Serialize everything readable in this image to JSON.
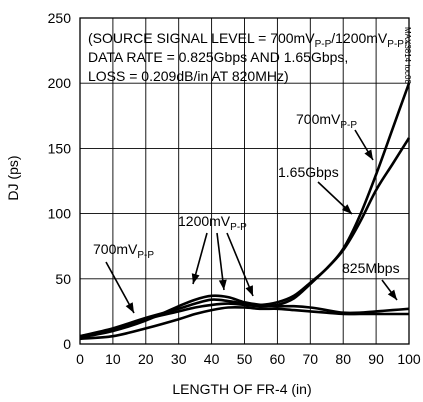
{
  "chart_data": {
    "type": "line",
    "xlabel": "LENGTH OF FR-4 (in)",
    "ylabel": "DJ (ps)",
    "xlim": [
      0,
      100
    ],
    "ylim": [
      0,
      250
    ],
    "xticks": [
      "0",
      "10",
      "20",
      "30",
      "40",
      "50",
      "60",
      "70",
      "80",
      "90",
      "100"
    ],
    "yticks": [
      "0",
      "50",
      "100",
      "150",
      "200",
      "250"
    ],
    "grid": true,
    "conditions": [
      "(SOURCE SIGNAL LEVEL = 700mV",
      "/1200mV",
      ",",
      "DATA RATE = 0.825Gbps AND 1.65Gbps,",
      "LOSS = 0.209dB/in AT 820MHz)"
    ],
    "condition_subscripts": [
      "P-P",
      "P-P"
    ],
    "chart_code": "MAX3814 toc08",
    "series": [
      {
        "x": [
          0,
          10,
          20,
          30,
          35,
          40,
          45,
          50,
          55,
          60,
          65,
          70,
          75,
          80,
          85,
          90,
          95,
          100
        ],
        "values": [
          6,
          12,
          20,
          27,
          31,
          34,
          33,
          31,
          30,
          32,
          37,
          47,
          58,
          73,
          98,
          130,
          165,
          200
        ]
      },
      {
        "x": [
          0,
          10,
          20,
          30,
          35,
          40,
          45,
          50,
          55,
          60,
          65,
          70,
          75,
          80,
          85,
          90,
          95,
          100
        ],
        "values": [
          6,
          11,
          19,
          25,
          28,
          30,
          31,
          30,
          29,
          30,
          35,
          46,
          58,
          72,
          93,
          118,
          138,
          158
        ]
      },
      {
        "x": [
          0,
          10,
          20,
          30,
          35,
          40,
          45,
          50,
          55,
          60,
          65,
          70,
          75,
          80,
          85,
          90,
          95,
          100
        ],
        "values": [
          5,
          10,
          18,
          29,
          34,
          37,
          36,
          32,
          30,
          29,
          29,
          28,
          26,
          24,
          24,
          25,
          26,
          27
        ]
      },
      {
        "x": [
          0,
          10,
          20,
          30,
          35,
          40,
          45,
          50,
          55,
          60,
          65,
          70,
          75,
          80,
          85,
          90,
          95,
          100
        ],
        "values": [
          4,
          6,
          12,
          19,
          23,
          26,
          28,
          28,
          27,
          27,
          26,
          25,
          24,
          23,
          23,
          23,
          23,
          23
        ]
      }
    ],
    "annotations": [
      {
        "text": "700mV",
        "sub": "P-P"
      },
      {
        "text": "1.65Gbps"
      },
      {
        "text": "1200mV",
        "sub": "P-P"
      },
      {
        "text": "700mV",
        "sub": "P-P"
      },
      {
        "text": "825Mbps"
      }
    ]
  }
}
